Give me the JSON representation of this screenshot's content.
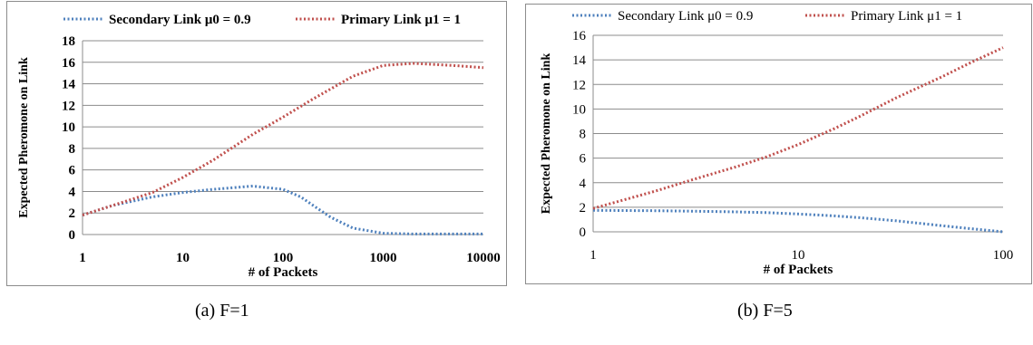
{
  "chart_data": [
    {
      "type": "line",
      "xscale": "log",
      "xlim": [
        1,
        10000
      ],
      "ylim": [
        0,
        18
      ],
      "yticks": [
        0,
        2,
        4,
        6,
        8,
        10,
        12,
        14,
        16,
        18
      ],
      "ytick_labels": [
        "0",
        "2",
        "4",
        "6",
        "8",
        "10",
        "12",
        "14",
        "16",
        "18"
      ],
      "xticks": [
        1,
        10,
        100,
        1000,
        10000
      ],
      "xtick_labels": [
        "1",
        "10",
        "100",
        "1000",
        "10000"
      ],
      "xlabel": "# of Packets",
      "ylabel": "Expected Pheromone on Link",
      "grid": true,
      "legend_position": "top",
      "caption": "(a)  F=1",
      "series": [
        {
          "name": "Secondary Link μ0 = 0.9",
          "color": "#4f81bd",
          "x": [
            1,
            2,
            5,
            10,
            20,
            50,
            100,
            150,
            200,
            300,
            500,
            1000,
            2000,
            5000,
            10000
          ],
          "y": [
            1.8,
            2.7,
            3.5,
            3.9,
            4.2,
            4.5,
            4.2,
            3.5,
            2.7,
            1.6,
            0.6,
            0.12,
            0.05,
            0.05,
            0.05
          ]
        },
        {
          "name": "Primary Link μ1 = 1",
          "color": "#c0504d",
          "x": [
            1,
            2,
            5,
            10,
            20,
            50,
            100,
            200,
            500,
            1000,
            2000,
            5000,
            10000
          ],
          "y": [
            1.8,
            2.7,
            3.9,
            5.3,
            6.9,
            9.3,
            10.9,
            12.6,
            14.7,
            15.7,
            15.9,
            15.7,
            15.5
          ]
        }
      ]
    },
    {
      "type": "line",
      "xscale": "log",
      "xlim": [
        1,
        100
      ],
      "ylim": [
        0,
        16
      ],
      "yticks": [
        0,
        2,
        4,
        6,
        8,
        10,
        12,
        14,
        16
      ],
      "ytick_labels": [
        "0",
        "2",
        "4",
        "6",
        "8",
        "10",
        "12",
        "14",
        "16"
      ],
      "xticks": [
        1,
        10,
        100
      ],
      "xtick_labels": [
        "1",
        "10",
        "100"
      ],
      "xlabel": "# of Packets",
      "ylabel": "Expected Pheromone on Link",
      "grid": true,
      "legend_position": "top",
      "caption": "(b)  F=5",
      "series": [
        {
          "name": "Secondary Link μ0 = 0.9",
          "color": "#4f81bd",
          "x": [
            1,
            2,
            3,
            5,
            7,
            10,
            15,
            20,
            30,
            50,
            70,
            100
          ],
          "y": [
            1.75,
            1.72,
            1.68,
            1.62,
            1.56,
            1.45,
            1.3,
            1.15,
            0.9,
            0.5,
            0.25,
            0.0
          ]
        },
        {
          "name": "Primary Link μ1 = 1",
          "color": "#c0504d",
          "x": [
            1,
            2,
            3,
            5,
            7,
            10,
            15,
            20,
            30,
            50,
            70,
            100
          ],
          "y": [
            1.9,
            3.3,
            4.2,
            5.3,
            6.1,
            7.1,
            8.4,
            9.4,
            10.9,
            12.6,
            13.8,
            15.0
          ]
        }
      ]
    }
  ]
}
